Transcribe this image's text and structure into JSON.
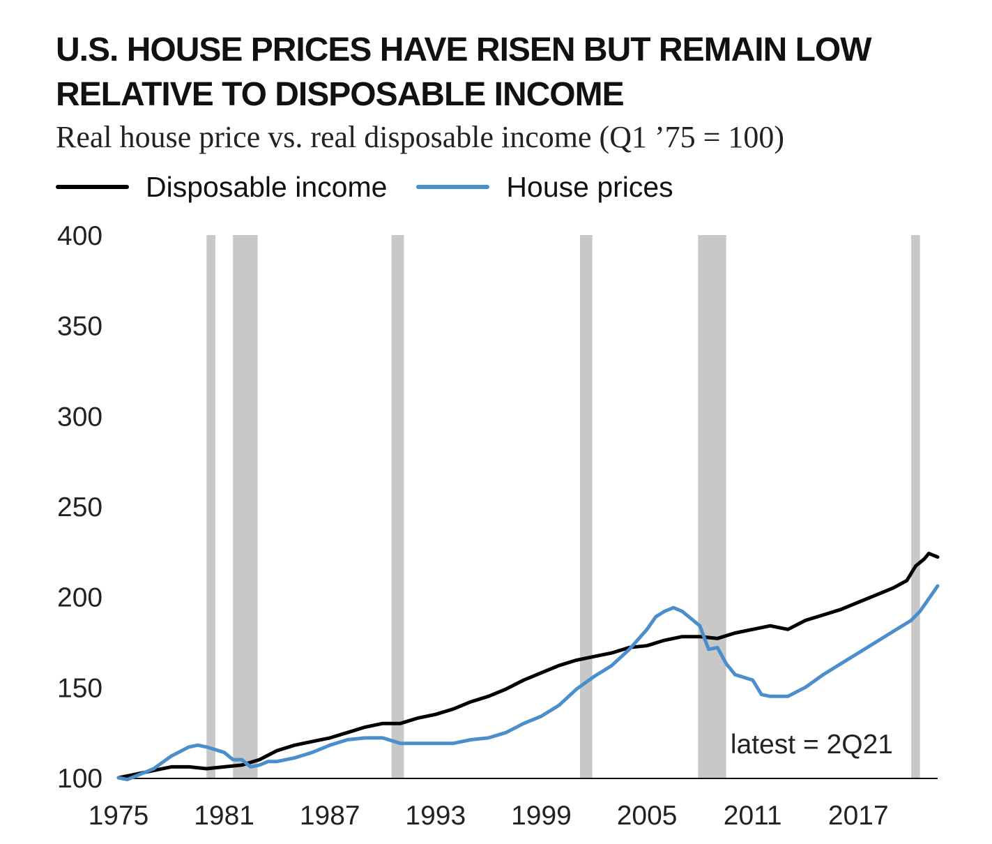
{
  "title": "U.S. HOUSE PRICES HAVE RISEN BUT REMAIN LOW RELATIVE TO DISPOSABLE INCOME",
  "subtitle": "Real house price vs. real disposable income (Q1 ’75 = 100)",
  "legend": [
    {
      "label": "Disposable income",
      "color": "#000000"
    },
    {
      "label": "House prices",
      "color": "#4a8fcb"
    }
  ],
  "chart_data": {
    "type": "line",
    "title": "Real house price vs. real disposable income (Q1 ’75 = 100)",
    "xlabel": "",
    "ylabel": "",
    "xlim": [
      1975,
      2021.5
    ],
    "ylim": [
      100,
      400
    ],
    "x_ticks": [
      1975,
      1981,
      1987,
      1993,
      1999,
      2005,
      2011,
      2017
    ],
    "y_ticks": [
      100,
      150,
      200,
      250,
      300,
      350,
      400
    ],
    "recessions": [
      [
        1980.0,
        1980.5
      ],
      [
        1981.5,
        1982.9
      ],
      [
        1990.5,
        1991.2
      ],
      [
        2001.2,
        2001.9
      ],
      [
        2007.9,
        2009.5
      ],
      [
        2020.0,
        2020.5
      ]
    ],
    "annotation": "latest = 2Q21",
    "series": [
      {
        "name": "Disposable income",
        "color": "#000000",
        "x": [
          1975.0,
          1975.5,
          1976,
          1977,
          1978,
          1979,
          1980,
          1981,
          1982,
          1983,
          1984,
          1985,
          1986,
          1987,
          1988,
          1989,
          1990,
          1991,
          1992,
          1993,
          1994,
          1995,
          1996,
          1997,
          1998,
          1999,
          2000,
          2001,
          2002,
          2003,
          2004,
          2005,
          2006,
          2007,
          2008,
          2009,
          2010,
          2011,
          2012,
          2013,
          2014,
          2015,
          2016,
          2017,
          2018,
          2019,
          2019.75,
          2020.25,
          2020.75,
          2021.0,
          2021.25,
          2021.5
        ],
        "values": [
          100,
          101,
          102,
          104,
          106,
          106,
          105,
          106,
          107,
          110,
          115,
          118,
          120,
          122,
          125,
          128,
          130,
          130,
          133,
          135,
          138,
          142,
          145,
          149,
          154,
          158,
          162,
          165,
          167,
          169,
          172,
          173,
          176,
          178,
          178,
          177,
          180,
          182,
          184,
          182,
          187,
          190,
          193,
          197,
          201,
          205,
          209,
          217,
          221,
          224,
          223,
          222
        ]
      },
      {
        "name": "House prices",
        "color": "#4a8fcb",
        "x": [
          1975.0,
          1975.5,
          1976,
          1977,
          1978,
          1979,
          1979.5,
          1980,
          1981,
          1981.5,
          1982,
          1982.5,
          1983,
          1983.5,
          1984,
          1985,
          1986,
          1987,
          1988,
          1989,
          1990,
          1991,
          1992,
          1993,
          1994,
          1995,
          1996,
          1997,
          1998,
          1999,
          2000,
          2001,
          2002,
          2003,
          2004,
          2005,
          2005.5,
          2006,
          2006.5,
          2007,
          2008,
          2008.5,
          2009,
          2009.5,
          2010,
          2011,
          2011.5,
          2012,
          2013,
          2014,
          2015,
          2016,
          2017,
          2018,
          2019,
          2020,
          2020.5,
          2021.0,
          2021.5
        ],
        "values": [
          100,
          99,
          101,
          105,
          112,
          117,
          118,
          117,
          114,
          110,
          110,
          106,
          107,
          109,
          109,
          111,
          114,
          118,
          121,
          122,
          122,
          119,
          119,
          119,
          119,
          121,
          122,
          125,
          130,
          134,
          140,
          149,
          156,
          162,
          171,
          182,
          189,
          192,
          194,
          192,
          184,
          171,
          172,
          163,
          157,
          154,
          146,
          145,
          145,
          150,
          157,
          163,
          169,
          175,
          181,
          187,
          192,
          199,
          206
        ]
      }
    ]
  }
}
